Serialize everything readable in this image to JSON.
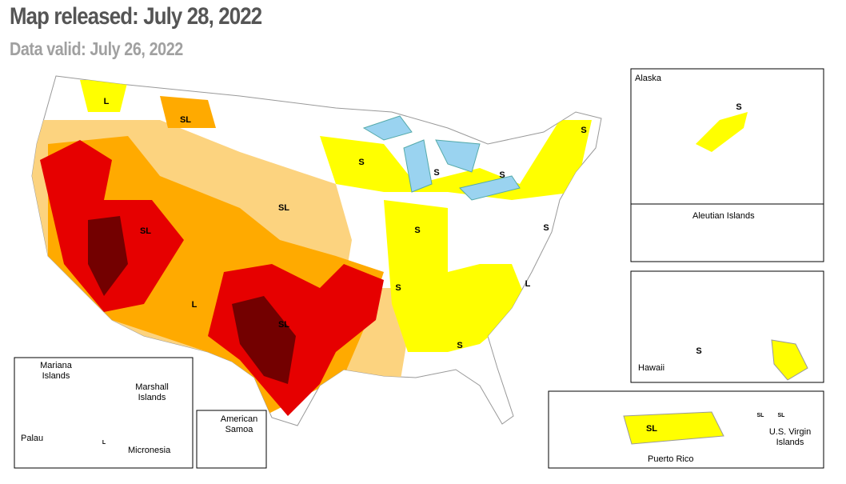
{
  "header": {
    "title": "Map released: July 28, 2022",
    "subtitle": "Data valid: July 26, 2022"
  },
  "insets": {
    "alaska": "Alaska",
    "aleutian": "Aleutian Islands",
    "hawaii": "Hawaii",
    "puerto_rico": "Puerto Rico",
    "virgin_islands": "U.S. Virgin Islands",
    "american_samoa": "American Samoa"
  },
  "pacific": {
    "mariana": "Mariana Islands",
    "marshall": "Marshall Islands",
    "palau": "Palau",
    "micronesia": "Micronesia"
  },
  "map_labels": [
    "L",
    "SL",
    "S",
    "S",
    "S",
    "S",
    "SL",
    "SL",
    "S",
    "S",
    "S",
    "L",
    "L",
    "SL",
    "S",
    "S",
    "S",
    "SL",
    "SL",
    "SL",
    "L"
  ]
}
